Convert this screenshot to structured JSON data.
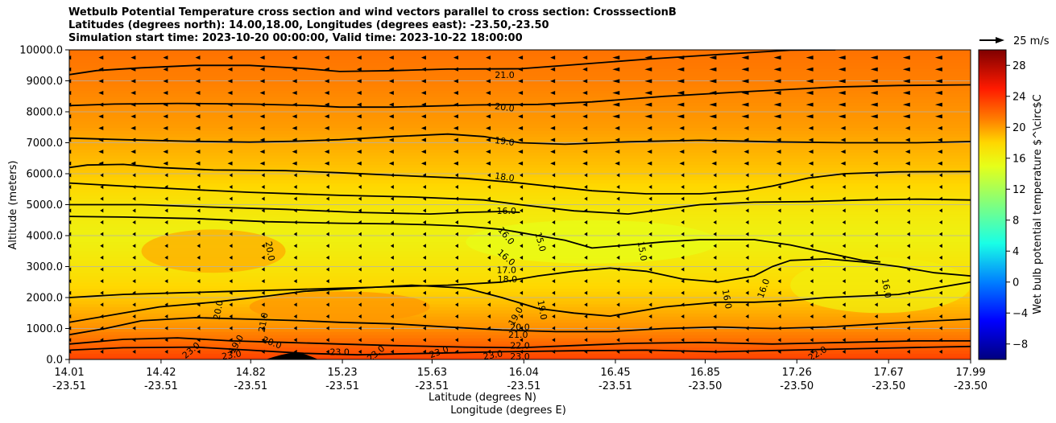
{
  "chart_data": {
    "type": "contourf",
    "title_lines": [
      "Wetbulb Potential Temperature cross section and wind vectors parallel to cross section: CrosssectionB",
      "Latitudes (degrees north): 14.00,18.00, Longitudes (degrees east): -23.50,-23.50",
      "Simulation start time: 2023-10-20 00:00:00, Valid time: 2023-10-22 18:00:00"
    ],
    "ylabel": "Altitude (meters)",
    "xlabel_lat": "Latitude (degrees N)",
    "xlabel_lon": "Longitude (degrees E)",
    "ylim": [
      0,
      10000
    ],
    "yticks": [
      "0.0",
      "1000.0",
      "2000.0",
      "3000.0",
      "4000.0",
      "5000.0",
      "6000.0",
      "7000.0",
      "8000.0",
      "9000.0",
      "10000.0"
    ],
    "xticks": [
      {
        "lat": "14.01",
        "lon": "-23.51"
      },
      {
        "lat": "14.42",
        "lon": "-23.51"
      },
      {
        "lat": "14.82",
        "lon": "-23.51"
      },
      {
        "lat": "15.23",
        "lon": "-23.51"
      },
      {
        "lat": "15.63",
        "lon": "-23.51"
      },
      {
        "lat": "16.04",
        "lon": "-23.51"
      },
      {
        "lat": "16.45",
        "lon": "-23.51"
      },
      {
        "lat": "16.85",
        "lon": "-23.50"
      },
      {
        "lat": "17.26",
        "lon": "-23.50"
      },
      {
        "lat": "17.67",
        "lon": "-23.50"
      },
      {
        "lat": "17.99",
        "lon": "-23.50"
      }
    ],
    "colorbar": {
      "label": "Wet bulb potential temperature $^\\circ$C",
      "range": [
        -10,
        30
      ],
      "ticks": [
        "−8",
        "−4",
        "0",
        "4",
        "8",
        "12",
        "16",
        "20",
        "24",
        "28"
      ],
      "tick_values": [
        -8,
        -4,
        0,
        4,
        8,
        12,
        16,
        20,
        24,
        28
      ]
    },
    "quiver_key": "25 m/s",
    "color_stops": [
      {
        "v": -10,
        "c": "#00007f"
      },
      {
        "v": -5,
        "c": "#0000ff"
      },
      {
        "v": 0,
        "c": "#007fff"
      },
      {
        "v": 5,
        "c": "#19ffe6"
      },
      {
        "v": 10,
        "c": "#7fff7f"
      },
      {
        "v": 15,
        "c": "#e6ff19"
      },
      {
        "v": 18,
        "c": "#ffd700"
      },
      {
        "v": 21,
        "c": "#ff7f00"
      },
      {
        "v": 25,
        "c": "#ff1a00"
      },
      {
        "v": 30,
        "c": "#7f0000"
      }
    ],
    "field_bands": [
      {
        "z": 0,
        "v": 23.5
      },
      {
        "z": 500,
        "v": 22.0
      },
      {
        "z": 1000,
        "v": 20.5
      },
      {
        "z": 2000,
        "v": 18.5
      },
      {
        "z": 3000,
        "v": 17.0
      },
      {
        "z": 4000,
        "v": 16.0
      },
      {
        "z": 5000,
        "v": 17.0
      },
      {
        "z": 6000,
        "v": 18.5
      },
      {
        "z": 7500,
        "v": 20.0
      },
      {
        "z": 9000,
        "v": 21.0
      },
      {
        "z": 10000,
        "v": 21.5
      }
    ],
    "contours": [
      {
        "level": "21.0",
        "pts": [
          [
            0,
            9200
          ],
          [
            3,
            9330
          ],
          [
            8,
            9420
          ],
          [
            14,
            9500
          ],
          [
            20,
            9500
          ],
          [
            26,
            9400
          ],
          [
            30,
            9300
          ],
          [
            36,
            9330
          ],
          [
            42,
            9380
          ],
          [
            50,
            9390
          ],
          [
            56,
            9520
          ],
          [
            64,
            9700
          ],
          [
            72,
            9850
          ],
          [
            80,
            9990
          ],
          [
            85,
            10000
          ]
        ]
      },
      {
        "level": "20.0",
        "pts": [
          [
            0,
            8200
          ],
          [
            5,
            8250
          ],
          [
            12,
            8270
          ],
          [
            20,
            8250
          ],
          [
            27,
            8200
          ],
          [
            30,
            8150
          ],
          [
            36,
            8150
          ],
          [
            45,
            8220
          ],
          [
            52,
            8240
          ],
          [
            58,
            8320
          ],
          [
            66,
            8500
          ],
          [
            75,
            8650
          ],
          [
            85,
            8800
          ],
          [
            92,
            8850
          ],
          [
            100,
            8870
          ]
        ]
      },
      {
        "level": "19.0",
        "pts": [
          [
            0,
            7150
          ],
          [
            6,
            7100
          ],
          [
            13,
            7050
          ],
          [
            20,
            7020
          ],
          [
            25,
            7050
          ],
          [
            30,
            7100
          ],
          [
            36,
            7200
          ],
          [
            42,
            7280
          ],
          [
            46,
            7200
          ],
          [
            50,
            7000
          ],
          [
            55,
            6950
          ],
          [
            62,
            7030
          ],
          [
            70,
            7080
          ],
          [
            78,
            7030
          ],
          [
            86,
            7000
          ],
          [
            94,
            7000
          ],
          [
            100,
            7040
          ]
        ]
      },
      {
        "level": "18.0",
        "pts": [
          [
            0,
            6200
          ],
          [
            2,
            6280
          ],
          [
            6,
            6300
          ],
          [
            10,
            6200
          ],
          [
            16,
            6120
          ],
          [
            24,
            6100
          ],
          [
            30,
            6030
          ],
          [
            36,
            5950
          ],
          [
            44,
            5850
          ],
          [
            50,
            5700
          ],
          [
            58,
            5450
          ],
          [
            64,
            5350
          ],
          [
            70,
            5350
          ],
          [
            75,
            5450
          ],
          [
            78,
            5600
          ],
          [
            82,
            5860
          ],
          [
            86,
            6000
          ],
          [
            92,
            6060
          ],
          [
            100,
            6070
          ]
        ]
      },
      {
        "level": "17.0",
        "pts": [
          [
            0,
            5700
          ],
          [
            6,
            5600
          ],
          [
            14,
            5480
          ],
          [
            20,
            5400
          ],
          [
            30,
            5300
          ],
          [
            38,
            5250
          ],
          [
            46,
            5150
          ],
          [
            50,
            5000
          ],
          [
            56,
            4800
          ],
          [
            62,
            4700
          ],
          [
            66,
            4850
          ],
          [
            70,
            5000
          ],
          [
            76,
            5080
          ],
          [
            82,
            5100
          ],
          [
            88,
            5150
          ],
          [
            94,
            5180
          ],
          [
            100,
            5150
          ]
        ]
      },
      {
        "level": "16.0",
        "pts": [
          [
            0,
            5000
          ],
          [
            8,
            5000
          ],
          [
            16,
            4920
          ],
          [
            24,
            4850
          ],
          [
            32,
            4750
          ],
          [
            40,
            4700
          ],
          [
            44,
            4750
          ],
          [
            48,
            4780
          ],
          [
            50,
            4750
          ]
        ]
      },
      {
        "level": "16.0b",
        "pts": [
          [
            0,
            4620
          ],
          [
            6,
            4600
          ],
          [
            14,
            4550
          ],
          [
            22,
            4450
          ],
          [
            30,
            4400
          ],
          [
            36,
            4380
          ],
          [
            40,
            4350
          ],
          [
            44,
            4300
          ],
          [
            48,
            4200
          ],
          [
            52,
            4000
          ],
          [
            55,
            3850
          ],
          [
            58,
            3600
          ],
          [
            62,
            3700
          ],
          [
            66,
            3800
          ],
          [
            70,
            3870
          ],
          [
            76,
            3870
          ],
          [
            80,
            3700
          ],
          [
            84,
            3450
          ],
          [
            88,
            3200
          ],
          [
            90,
            3150
          ]
        ]
      },
      {
        "level": "18.0b",
        "pts": [
          [
            0,
            2000
          ],
          [
            6,
            2100
          ],
          [
            12,
            2150
          ],
          [
            18,
            2200
          ],
          [
            24,
            2250
          ],
          [
            30,
            2300
          ],
          [
            36,
            2350
          ],
          [
            42,
            2400
          ],
          [
            48,
            2500
          ],
          [
            52,
            2700
          ],
          [
            56,
            2850
          ],
          [
            60,
            2950
          ],
          [
            64,
            2850
          ],
          [
            68,
            2600
          ],
          [
            72,
            2500
          ],
          [
            76,
            2700
          ],
          [
            78,
            3000
          ],
          [
            80,
            3200
          ],
          [
            84,
            3250
          ],
          [
            88,
            3150
          ],
          [
            92,
            3000
          ],
          [
            96,
            2800
          ],
          [
            100,
            2700
          ]
        ]
      },
      {
        "level": "20.0b",
        "pts": [
          [
            0,
            1200
          ],
          [
            6,
            1500
          ],
          [
            10,
            1700
          ],
          [
            16,
            1850
          ],
          [
            22,
            2050
          ],
          [
            26,
            2200
          ],
          [
            32,
            2300
          ],
          [
            38,
            2400
          ],
          [
            44,
            2300
          ],
          [
            48,
            2000
          ],
          [
            52,
            1650
          ],
          [
            56,
            1500
          ],
          [
            60,
            1400
          ],
          [
            66,
            1700
          ],
          [
            72,
            1850
          ],
          [
            76,
            1850
          ],
          [
            80,
            1900
          ],
          [
            84,
            2000
          ],
          [
            88,
            2050
          ],
          [
            92,
            2100
          ],
          [
            96,
            2300
          ],
          [
            100,
            2500
          ]
        ]
      },
      {
        "level": "21.0b",
        "pts": [
          [
            0,
            800
          ],
          [
            4,
            1000
          ],
          [
            8,
            1250
          ],
          [
            14,
            1350
          ],
          [
            20,
            1300
          ],
          [
            26,
            1250
          ],
          [
            30,
            1200
          ],
          [
            36,
            1150
          ],
          [
            42,
            1050
          ],
          [
            48,
            950
          ],
          [
            54,
            900
          ],
          [
            60,
            900
          ],
          [
            66,
            1000
          ],
          [
            72,
            1050
          ],
          [
            78,
            1000
          ],
          [
            84,
            1050
          ],
          [
            90,
            1150
          ],
          [
            96,
            1250
          ],
          [
            100,
            1300
          ]
        ]
      },
      {
        "level": "22.0",
        "pts": [
          [
            0,
            500
          ],
          [
            6,
            650
          ],
          [
            12,
            700
          ],
          [
            18,
            600
          ],
          [
            24,
            550
          ],
          [
            30,
            500
          ],
          [
            36,
            450
          ],
          [
            44,
            400
          ],
          [
            50,
            380
          ],
          [
            56,
            450
          ],
          [
            62,
            520
          ],
          [
            70,
            550
          ],
          [
            78,
            500
          ],
          [
            86,
            550
          ],
          [
            94,
            600
          ],
          [
            100,
            600
          ]
        ]
      },
      {
        "level": "23.0",
        "pts": [
          [
            0,
            300
          ],
          [
            6,
            380
          ],
          [
            14,
            400
          ],
          [
            20,
            300
          ],
          [
            26,
            200
          ],
          [
            32,
            150
          ],
          [
            40,
            200
          ],
          [
            48,
            250
          ],
          [
            56,
            280
          ],
          [
            64,
            300
          ],
          [
            72,
            250
          ],
          [
            80,
            300
          ],
          [
            88,
            350
          ],
          [
            96,
            400
          ],
          [
            100,
            420
          ]
        ]
      }
    ],
    "contour_labels": [
      {
        "text": "21.0",
        "x": 48.3,
        "z": 9200,
        "rot": 0
      },
      {
        "text": "20.0",
        "x": 48.3,
        "z": 8150,
        "rot": 8
      },
      {
        "text": "19.0",
        "x": 48.3,
        "z": 7050,
        "rot": 8
      },
      {
        "text": "18.0",
        "x": 48.3,
        "z": 5900,
        "rot": 8
      },
      {
        "text": "16.0",
        "x": 48.5,
        "z": 4800,
        "rot": 0
      },
      {
        "text": "16.0",
        "x": 48.5,
        "z": 4000,
        "rot": 50
      },
      {
        "text": "15.0",
        "x": 52.3,
        "z": 3800,
        "rot": 75
      },
      {
        "text": "15.0",
        "x": 63.6,
        "z": 3500,
        "rot": 80
      },
      {
        "text": "16.0",
        "x": 48.5,
        "z": 3300,
        "rot": 40
      },
      {
        "text": "17.0",
        "x": 48.5,
        "z": 2900,
        "rot": 0
      },
      {
        "text": "18.0",
        "x": 48.6,
        "z": 2600,
        "rot": 0
      },
      {
        "text": "20.0",
        "x": 22.3,
        "z": 3500,
        "rot": 80
      },
      {
        "text": "20.0",
        "x": 16.5,
        "z": 1600,
        "rot": -80
      },
      {
        "text": "21.0",
        "x": 21.5,
        "z": 1200,
        "rot": -80
      },
      {
        "text": "19.0",
        "x": 49.5,
        "z": 1400,
        "rot": -60
      },
      {
        "text": "19.0",
        "x": 52.5,
        "z": 1600,
        "rot": 80
      },
      {
        "text": "16.0",
        "x": 73.0,
        "z": 1950,
        "rot": 80
      },
      {
        "text": "16.0",
        "x": 77.0,
        "z": 2300,
        "rot": -70
      },
      {
        "text": "16.0",
        "x": 90.7,
        "z": 2300,
        "rot": 80
      },
      {
        "text": "20.0",
        "x": 50.0,
        "z": 1050,
        "rot": 0
      },
      {
        "text": "21.0",
        "x": 49.8,
        "z": 800,
        "rot": 0
      },
      {
        "text": "22.0",
        "x": 50.0,
        "z": 450,
        "rot": 0
      },
      {
        "text": "20.0",
        "x": 22.5,
        "z": 550,
        "rot": 20
      },
      {
        "text": "19.0",
        "x": 18.5,
        "z": 500,
        "rot": -60
      },
      {
        "text": "23.0",
        "x": 13.5,
        "z": 300,
        "rot": -40
      },
      {
        "text": "23.0",
        "x": 18.0,
        "z": 150,
        "rot": -10
      },
      {
        "text": "23.0",
        "x": 30.0,
        "z": 250,
        "rot": 0
      },
      {
        "text": "23.0",
        "x": 34.0,
        "z": 200,
        "rot": -40
      },
      {
        "text": "23.0",
        "x": 41.0,
        "z": 250,
        "rot": -20
      },
      {
        "text": "23.0",
        "x": 47.0,
        "z": 150,
        "rot": -10
      },
      {
        "text": "23.0",
        "x": 50.0,
        "z": 100,
        "rot": 0
      },
      {
        "text": "22.0",
        "x": 83.0,
        "z": 200,
        "rot": -30
      }
    ]
  }
}
